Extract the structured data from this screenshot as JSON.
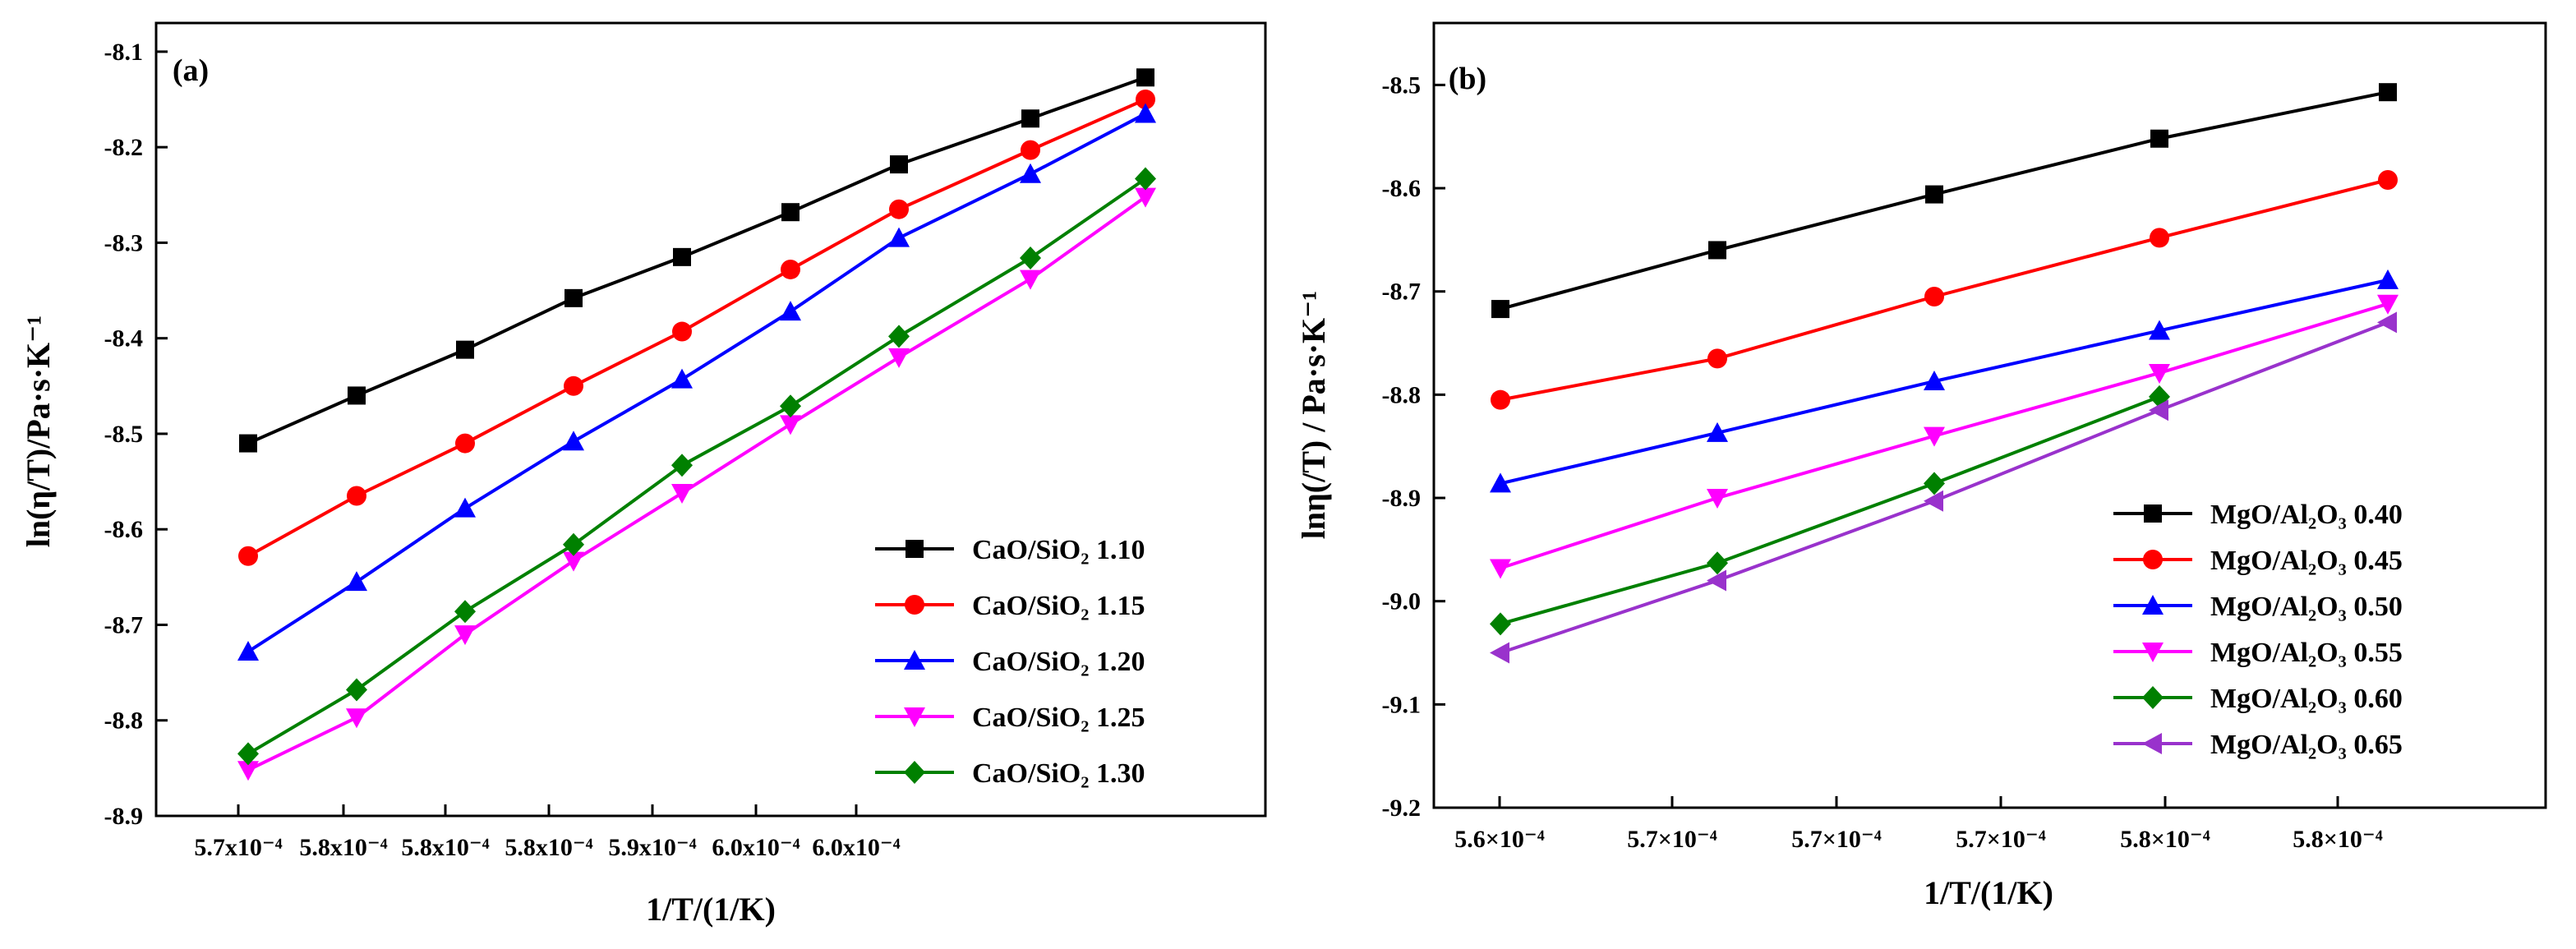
{
  "chart_data": [
    {
      "type": "line",
      "panel": "(a)",
      "xlabel": "1/T/(1/K)",
      "ylabel": "ln(η/T)/Pa·s·K⁻¹",
      "x_tick_labels": [
        "5.7x10⁻⁴",
        "5.8x10⁻⁴",
        "5.8x10⁻⁴",
        "5.8x10⁻⁴",
        "5.9x10⁻⁴",
        "6.0x10⁻⁴",
        "6.0x10⁻⁴"
      ],
      "y_tick_labels": [
        "-8.1",
        "-8.2",
        "-8.3",
        "-8.4",
        "-8.5",
        "-8.6",
        "-8.7",
        "-8.8",
        "-8.9"
      ],
      "ylim": [
        -8.9,
        -8.07
      ],
      "legend_position": "bottom-right",
      "x": [
        1,
        2,
        3,
        4,
        5,
        6,
        7,
        8,
        9
      ],
      "series": [
        {
          "name": "CaO/SiO₂ 1.10",
          "color": "#000000",
          "marker": "square",
          "values": [
            -8.51,
            -8.46,
            -8.412,
            -8.358,
            -8.315,
            -8.268,
            -8.218,
            -8.17,
            -8.127
          ]
        },
        {
          "name": "CaO/SiO₂ 1.15",
          "color": "#ff0000",
          "marker": "circle",
          "values": [
            -8.628,
            -8.565,
            -8.51,
            -8.45,
            -8.393,
            -8.328,
            -8.265,
            -8.203,
            -8.15
          ]
        },
        {
          "name": "CaO/SiO₂ 1.20",
          "color": "#0000ff",
          "marker": "triangle-up",
          "values": [
            -8.728,
            -8.655,
            -8.578,
            -8.508,
            -8.443,
            -8.372,
            -8.295,
            -8.228,
            -8.165
          ]
        },
        {
          "name": "CaO/SiO₂ 1.25",
          "color": "#ff00ff",
          "marker": "triangle-down",
          "values": [
            -8.852,
            -8.797,
            -8.71,
            -8.633,
            -8.562,
            -8.49,
            -8.42,
            -8.338,
            -8.252
          ]
        },
        {
          "name": "CaO/SiO₂ 1.30",
          "color": "#008000",
          "marker": "diamond",
          "values": [
            -8.835,
            -8.768,
            -8.686,
            -8.616,
            -8.533,
            -8.471,
            -8.398,
            -8.316,
            -8.233
          ]
        }
      ]
    },
    {
      "type": "line",
      "panel": "(b)",
      "xlabel": "1/T/(1/K)",
      "ylabel": "lnη(/T) / Pa·s·K⁻¹",
      "x_tick_labels": [
        "5.6×10⁻⁴",
        "5.7×10⁻⁴",
        "5.7×10⁻⁴",
        "5.7×10⁻⁴",
        "5.8×10⁻⁴",
        "5.8×10⁻⁴"
      ],
      "y_tick_labels": [
        "-8.5",
        "-8.6",
        "-8.7",
        "-8.8",
        "-8.9",
        "-9.0",
        "-9.1",
        "-9.2"
      ],
      "ylim": [
        -9.2,
        -8.44
      ],
      "legend_position": "bottom-right",
      "x": [
        1,
        2,
        3,
        4,
        5
      ],
      "series": [
        {
          "name": "MgO/Al₂O₃ 0.40",
          "color": "#000000",
          "marker": "square",
          "values": [
            -8.717,
            -8.66,
            -8.606,
            -8.552,
            -8.507
          ]
        },
        {
          "name": "MgO/Al₂O₃ 0.45",
          "color": "#ff0000",
          "marker": "circle",
          "values": [
            -8.805,
            -8.765,
            -8.705,
            -8.648,
            -8.592
          ]
        },
        {
          "name": "MgO/Al₂O₃ 0.50",
          "color": "#0000ff",
          "marker": "triangle-up",
          "values": [
            -8.886,
            -8.837,
            -8.787,
            -8.738,
            -8.689
          ]
        },
        {
          "name": "MgO/Al₂O₃ 0.55",
          "color": "#ff00ff",
          "marker": "triangle-down",
          "values": [
            -8.968,
            -8.9,
            -8.84,
            -8.779,
            -8.712
          ]
        },
        {
          "name": "MgO/Al₂O₃ 0.60",
          "color": "#008000",
          "marker": "diamond",
          "values": [
            -9.022,
            -8.963,
            -8.886,
            -8.802,
            null
          ]
        },
        {
          "name": "MgO/Al₂O₃ 0.65",
          "color": "#9932cc",
          "marker": "triangle-left",
          "values": [
            -9.05,
            -8.98,
            -8.903,
            -8.815,
            -8.73
          ]
        }
      ]
    }
  ]
}
